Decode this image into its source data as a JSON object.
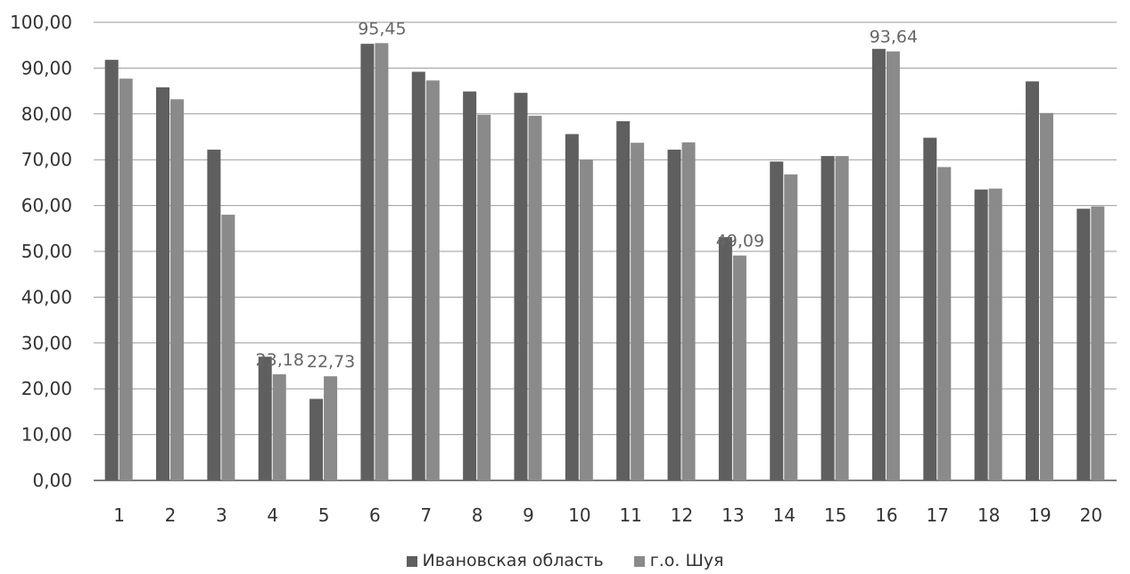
{
  "chart_data": {
    "type": "bar",
    "categories": [
      "1",
      "2",
      "3",
      "4",
      "5",
      "6",
      "7",
      "8",
      "9",
      "10",
      "11",
      "12",
      "13",
      "14",
      "15",
      "16",
      "17",
      "18",
      "19",
      "20"
    ],
    "series": [
      {
        "name": "Ивановская область",
        "color": "#5f5f5f",
        "values": [
          91.8,
          85.8,
          72.2,
          27.0,
          17.8,
          95.3,
          89.2,
          84.9,
          84.6,
          75.6,
          78.4,
          72.2,
          53.1,
          69.6,
          70.8,
          94.2,
          74.8,
          63.5,
          87.1,
          59.3
        ],
        "data_labels": {}
      },
      {
        "name": "г.о. Шуя",
        "color": "#8a8a8a",
        "values": [
          87.7,
          83.2,
          58.0,
          23.18,
          22.73,
          95.45,
          87.3,
          79.8,
          79.6,
          70.0,
          73.7,
          73.8,
          49.09,
          66.8,
          70.8,
          93.64,
          68.4,
          63.7,
          80.2,
          59.8
        ],
        "data_labels": {
          "3": "23,18",
          "4": "22,73",
          "5": "95,45",
          "12": "49,09",
          "15": "93,64"
        }
      }
    ],
    "yticks": [
      "0,00",
      "10,00",
      "20,00",
      "30,00",
      "40,00",
      "50,00",
      "60,00",
      "70,00",
      "80,00",
      "90,00",
      "100,00"
    ],
    "ylim": [
      0,
      100
    ],
    "grid": true,
    "legend_position": "bottom"
  }
}
